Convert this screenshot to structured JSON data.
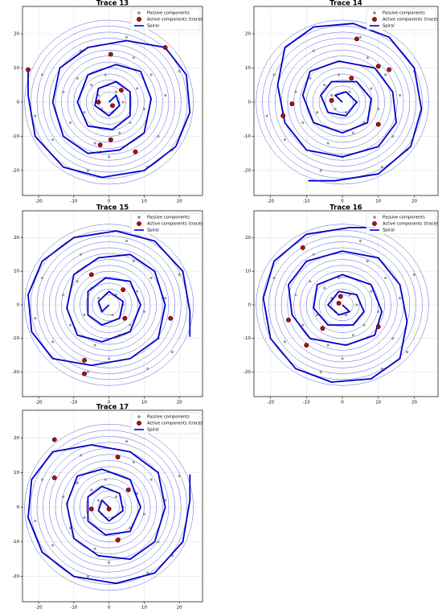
{
  "chart_data": [
    {
      "type": "scatter",
      "title": "Trace 13",
      "xlim": [
        -24.6,
        26.6
      ],
      "ylim": [
        -27.3,
        28
      ],
      "xticks": [
        -20,
        -10,
        0,
        10,
        20
      ],
      "yticks": [
        -20,
        -10,
        0,
        10,
        20
      ],
      "grid": true,
      "legend": "upper right",
      "series": [
        {
          "name": "Passive components",
          "color": "#8c8c8c",
          "mode": "markers",
          "x": [
            2,
            -3,
            1,
            -2,
            4,
            -5,
            6,
            -7,
            8,
            -1,
            3,
            -9,
            10,
            -11,
            12,
            -4,
            7,
            -13,
            14,
            -8,
            0,
            16,
            -16,
            5,
            -19,
            18,
            -6,
            20,
            -21,
            11
          ],
          "y": [
            3,
            2,
            -3,
            -2,
            0,
            5,
            -6,
            -3,
            4,
            8,
            -9,
            7,
            -2,
            -6,
            8,
            -12,
            13,
            3,
            -10,
            15,
            -16,
            2,
            -11,
            19,
            8,
            -14,
            -20,
            9,
            -4,
            -19
          ]
        },
        {
          "name": "Active components (trace)",
          "color": "#cc0000",
          "mode": "markers",
          "x": [
            -23,
            0.5,
            16,
            3.5,
            -3,
            1,
            0.5,
            -2.5,
            7.5
          ],
          "y": [
            9.5,
            14,
            16,
            3.5,
            0,
            -1,
            -11,
            -12.5,
            -14.5
          ]
        },
        {
          "name": "Spiral",
          "color": "#0000cc",
          "mode": "line",
          "x": [
            0,
            2,
            3,
            0,
            -4,
            -3,
            2,
            6,
            6,
            1,
            -6,
            -9,
            -6,
            2,
            9,
            12,
            10,
            3,
            -6,
            -13,
            -16,
            -14,
            -6,
            5,
            16,
            22,
            23,
            19,
            10,
            -2,
            -13,
            -21,
            -23,
            -23
          ],
          "y": [
            0,
            2,
            -1,
            -4,
            -1,
            4,
            6,
            3,
            -4,
            -8,
            -7,
            0,
            8,
            11,
            9,
            1,
            -9,
            -14,
            -15,
            -10,
            0,
            10,
            16,
            18,
            16,
            8,
            -3,
            -13,
            -20,
            -22,
            -19,
            -10,
            2,
            9.5
          ]
        }
      ]
    },
    {
      "type": "scatter",
      "title": "Trace 14",
      "xlim": [
        -24.6,
        26.6
      ],
      "ylim": [
        -27.3,
        28
      ],
      "xticks": [
        -20,
        -10,
        0,
        10,
        20
      ],
      "yticks": [
        -20,
        -10,
        0,
        10,
        20
      ],
      "grid": true,
      "legend": "upper right",
      "series": [
        {
          "name": "Passive components",
          "color": "#8c8c8c",
          "mode": "markers",
          "x": [
            2,
            -3,
            1,
            -2,
            4,
            -5,
            6,
            -7,
            8,
            -1,
            3,
            -9,
            10,
            -11,
            12,
            -4,
            7,
            -13,
            14,
            -8,
            0,
            16,
            -16,
            5,
            -19,
            18,
            -6,
            20,
            -21,
            11
          ],
          "y": [
            3,
            2,
            -3,
            -2,
            0,
            5,
            -6,
            -3,
            4,
            8,
            -9,
            7,
            -2,
            -6,
            8,
            -12,
            13,
            3,
            -10,
            15,
            -16,
            2,
            -11,
            19,
            8,
            -14,
            -20,
            9,
            -4,
            -19
          ]
        },
        {
          "name": "Active components (trace)",
          "color": "#cc0000",
          "mode": "markers",
          "x": [
            4,
            10,
            13,
            2.5,
            -3,
            -14,
            -16.5,
            10
          ],
          "y": [
            18.5,
            10.5,
            9.5,
            7,
            0.5,
            -0.5,
            -4,
            -6.5
          ]
        },
        {
          "name": "Spiral",
          "color": "#0000cc",
          "mode": "line",
          "x": [
            0,
            -2,
            1,
            4,
            1,
            -4,
            -6,
            -3,
            4,
            8,
            7,
            0,
            -8,
            -11,
            -9,
            -1,
            9,
            14,
            15,
            10,
            0,
            -10,
            -16,
            -18,
            -16,
            -8,
            3,
            13,
            20,
            22,
            19,
            10,
            -2,
            -9.5
          ],
          "y": [
            0,
            2,
            3,
            0,
            -4,
            -3,
            2,
            6,
            6,
            1,
            -6,
            -9,
            -6,
            2,
            9,
            12,
            10,
            3,
            -6,
            -13,
            -16,
            -14,
            -6,
            5,
            16,
            22,
            23,
            19,
            10,
            -2,
            -13,
            -21,
            -23,
            -23
          ]
        }
      ]
    },
    {
      "type": "scatter",
      "title": "Trace 15",
      "xlim": [
        -24.6,
        26.6
      ],
      "ylim": [
        -27.3,
        28
      ],
      "xticks": [
        -20,
        -10,
        0,
        10,
        20
      ],
      "yticks": [
        -20,
        -10,
        0,
        10,
        20
      ],
      "grid": true,
      "legend": "upper right",
      "series": [
        {
          "name": "Passive components",
          "color": "#8c8c8c",
          "mode": "markers",
          "x": [
            2,
            -3,
            1,
            -2,
            4,
            -5,
            6,
            -7,
            8,
            -1,
            3,
            -9,
            10,
            -11,
            12,
            -4,
            7,
            -13,
            14,
            -8,
            0,
            16,
            -16,
            5,
            -19,
            18,
            -6,
            20,
            -21,
            11
          ],
          "y": [
            3,
            2,
            -3,
            -2,
            0,
            5,
            -6,
            -3,
            4,
            8,
            -9,
            7,
            -2,
            -6,
            8,
            -12,
            13,
            3,
            -10,
            15,
            -16,
            2,
            -11,
            19,
            8,
            -14,
            -20,
            9,
            -4,
            -19
          ]
        },
        {
          "name": "Active components (trace)",
          "color": "#cc0000",
          "mode": "markers",
          "x": [
            -5,
            4,
            4.5,
            17.5,
            -7,
            -7
          ],
          "y": [
            9,
            4.5,
            -4,
            -4,
            -16.5,
            -20.5
          ]
        },
        {
          "name": "Spiral",
          "color": "#0000cc",
          "mode": "line",
          "x": [
            0,
            -2,
            -3,
            0,
            4,
            3,
            -2,
            -6,
            -6,
            -1,
            6,
            9,
            6,
            -2,
            -9,
            -12,
            -10,
            -3,
            6,
            13,
            16,
            14,
            6,
            -5,
            -16,
            -22,
            -23,
            -19,
            -10,
            2,
            13,
            21,
            23,
            23
          ],
          "y": [
            0,
            -2,
            1,
            4,
            1,
            -4,
            -6,
            -3,
            4,
            8,
            7,
            0,
            -8,
            -11,
            -9,
            -1,
            9,
            14,
            15,
            10,
            0,
            -10,
            -16,
            -18,
            -16,
            -8,
            3,
            13,
            20,
            22,
            19,
            10,
            -2,
            -9.5
          ]
        }
      ]
    },
    {
      "type": "scatter",
      "title": "Trace 16",
      "xlim": [
        -24.6,
        26.6
      ],
      "ylim": [
        -27.3,
        28
      ],
      "xticks": [
        -20,
        -10,
        0,
        10,
        20
      ],
      "yticks": [
        -20,
        -10,
        0,
        10,
        20
      ],
      "grid": true,
      "legend": "upper right",
      "series": [
        {
          "name": "Passive components",
          "color": "#8c8c8c",
          "mode": "markers",
          "x": [
            2,
            -3,
            1,
            -2,
            4,
            -5,
            6,
            -7,
            8,
            -1,
            3,
            -9,
            10,
            -11,
            12,
            -4,
            7,
            -13,
            14,
            -8,
            0,
            16,
            -16,
            5,
            -19,
            18,
            -6,
            20,
            -21,
            11
          ],
          "y": [
            3,
            2,
            -3,
            -2,
            0,
            5,
            -6,
            -3,
            4,
            8,
            -9,
            7,
            -2,
            -6,
            8,
            -12,
            13,
            3,
            -10,
            15,
            -16,
            2,
            -11,
            19,
            8,
            -14,
            -20,
            9,
            -4,
            -19
          ]
        },
        {
          "name": "Active components (trace)",
          "color": "#cc0000",
          "mode": "markers",
          "x": [
            -11,
            -0.5,
            -1,
            -15,
            -5.5,
            -10,
            10
          ],
          "y": [
            17,
            2.5,
            0.5,
            -4.5,
            -7,
            -12,
            -6.5
          ]
        },
        {
          "name": "Spiral",
          "color": "#0000cc",
          "mode": "line",
          "x": [
            0,
            2,
            -1,
            -4,
            -1,
            4,
            6,
            3,
            -4,
            -8,
            -7,
            0,
            8,
            11,
            9,
            1,
            -9,
            -14,
            -15,
            -10,
            0,
            10,
            16,
            18,
            16,
            8,
            -3,
            -13,
            -20,
            -22,
            -19,
            -10,
            2,
            9.5
          ],
          "y": [
            0,
            -2,
            -3,
            0,
            4,
            3,
            -2,
            -6,
            -6,
            -1,
            6,
            9,
            6,
            -2,
            -9,
            -12,
            -10,
            -3,
            6,
            13,
            16,
            14,
            6,
            -5,
            -16,
            -22,
            -23,
            -19,
            -10,
            2,
            13,
            21,
            23,
            23
          ]
        }
      ]
    },
    {
      "type": "scatter",
      "title": "Trace 17",
      "xlim": [
        -24.6,
        26.6
      ],
      "ylim": [
        -27.3,
        28
      ],
      "xticks": [
        -20,
        -10,
        0,
        10,
        20
      ],
      "yticks": [
        -20,
        -10,
        0,
        10,
        20
      ],
      "grid": true,
      "legend": "upper right",
      "series": [
        {
          "name": "Passive components",
          "color": "#8c8c8c",
          "mode": "markers",
          "x": [
            2,
            -3,
            1,
            -2,
            4,
            -5,
            6,
            -7,
            8,
            -1,
            3,
            -9,
            10,
            -11,
            12,
            -4,
            7,
            -13,
            14,
            -8,
            0,
            16,
            -16,
            5,
            -19,
            18,
            -6,
            20,
            -21,
            11
          ],
          "y": [
            3,
            2,
            -3,
            -2,
            0,
            5,
            -6,
            -3,
            4,
            8,
            -9,
            7,
            -2,
            -6,
            8,
            -12,
            13,
            3,
            -10,
            15,
            -16,
            2,
            -11,
            19,
            8,
            -14,
            -20,
            9,
            -4,
            -19
          ]
        },
        {
          "name": "Active components (trace)",
          "color": "#cc0000",
          "mode": "markers",
          "x": [
            -15.5,
            -15.5,
            2.5,
            5.5,
            -5,
            0,
            2.5
          ],
          "y": [
            19.5,
            8.5,
            14.5,
            5,
            -0.5,
            -0.5,
            -9.5
          ]
        },
        {
          "name": "Spiral",
          "color": "#0000cc",
          "mode": "line",
          "x": [
            0,
            -2,
            -3,
            0,
            4,
            3,
            -2,
            -6,
            -6,
            -1,
            6,
            9,
            6,
            -2,
            -9,
            -12,
            -10,
            -3,
            6,
            13,
            16,
            14,
            6,
            -5,
            -16,
            -22,
            -23,
            -19,
            -10,
            2,
            13,
            21,
            23,
            23
          ],
          "y": [
            0,
            2,
            -1,
            -4,
            -1,
            4,
            6,
            3,
            -4,
            -8,
            -7,
            0,
            8,
            11,
            9,
            1,
            -9,
            -14,
            -15,
            -10,
            0,
            10,
            16,
            18,
            16,
            8,
            -3,
            -13,
            -20,
            -22,
            -19,
            -10,
            2,
            9.5
          ]
        }
      ]
    }
  ]
}
